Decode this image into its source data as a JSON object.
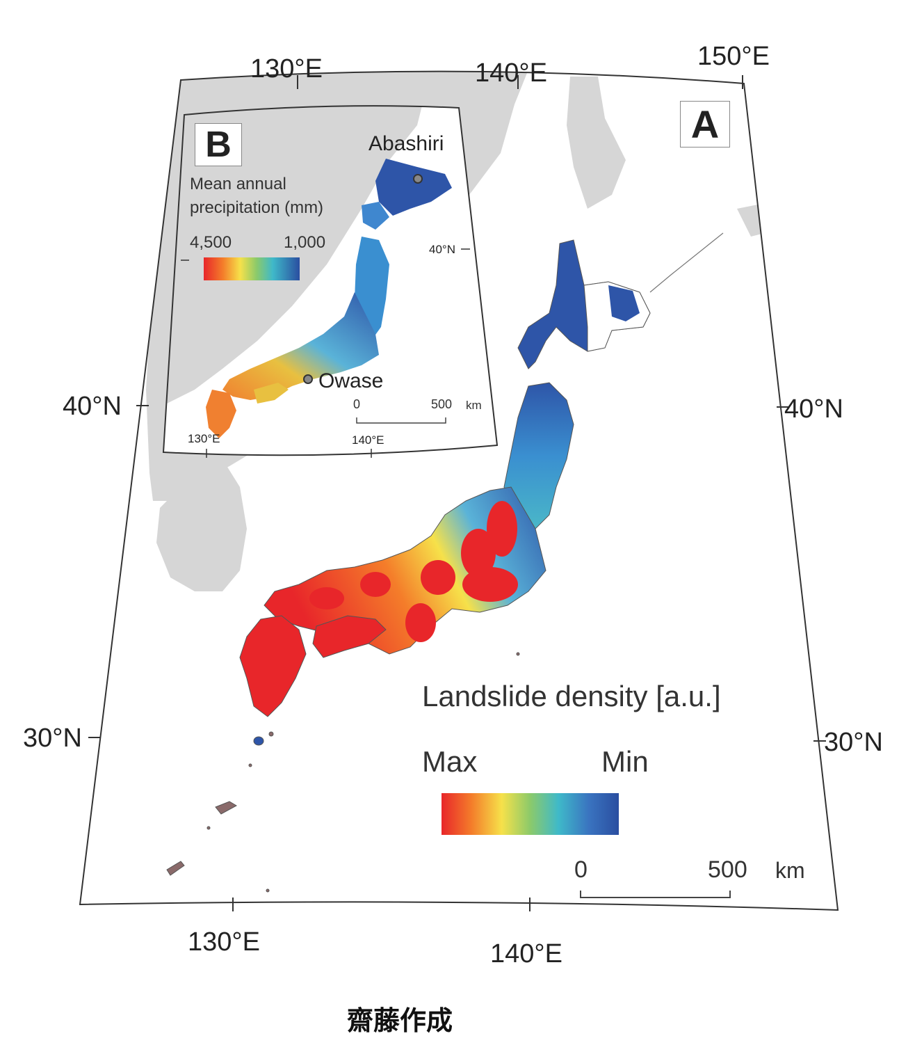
{
  "map_a": {
    "panel_label": "A",
    "top_lon_labels": [
      "130°E",
      "140°E",
      "150°E"
    ],
    "bottom_lon_labels": [
      "130°E",
      "140°E"
    ],
    "left_lat_labels": [
      "40°N",
      "30°N"
    ],
    "right_lat_labels": [
      "40°N",
      "30°N"
    ],
    "legend": {
      "title": "Landslide density [a.u.]",
      "max_label": "Max",
      "min_label": "Min",
      "colors": [
        "#e8262a",
        "#f47d2a",
        "#f6e14a",
        "#8cca6a",
        "#3fb9c9",
        "#3a74c0",
        "#2a4ea0"
      ]
    },
    "scale_bar": {
      "zero": "0",
      "end": "500",
      "unit": "km"
    }
  },
  "map_b": {
    "panel_label": "B",
    "legend_title_line1": "Mean annual",
    "legend_title_line2": "precipitation (mm)",
    "legend_high": "4,500",
    "legend_low": "1,000",
    "lat_label": "40°N",
    "lon_labels": [
      "130°E",
      "140°E"
    ],
    "places": {
      "north": "Abashiri",
      "south": "Owase"
    },
    "scale_bar": {
      "zero": "0",
      "end": "500",
      "unit": "km"
    }
  },
  "caption": "齋藤作成"
}
